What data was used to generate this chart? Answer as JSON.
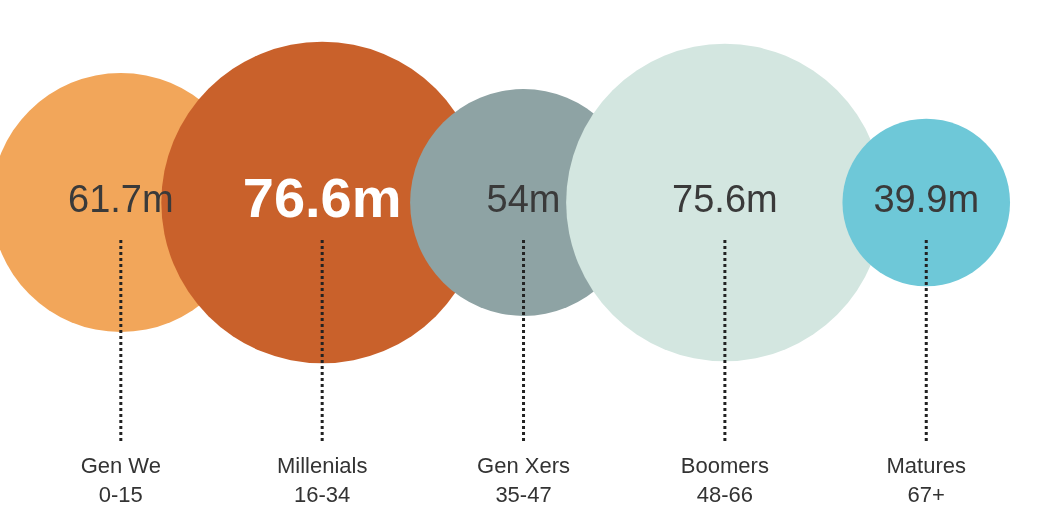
{
  "chart_data": {
    "type": "other",
    "categories": [
      "Gen We\n0-15",
      "Millenials\n16-34",
      "Gen Xers\n35-47",
      "Boomers\n48-66",
      "Matures\n67+"
    ],
    "values": [
      61.7,
      76.6,
      54,
      75.6,
      39.9
    ],
    "value_labels": [
      "61.7m",
      "76.6m",
      "54m",
      "75.6m",
      "39.9m"
    ],
    "colors": [
      "#f2a65a",
      "#c9612b",
      "#8ea3a4",
      "#d3e6e0",
      "#6ec8d8"
    ]
  }
}
